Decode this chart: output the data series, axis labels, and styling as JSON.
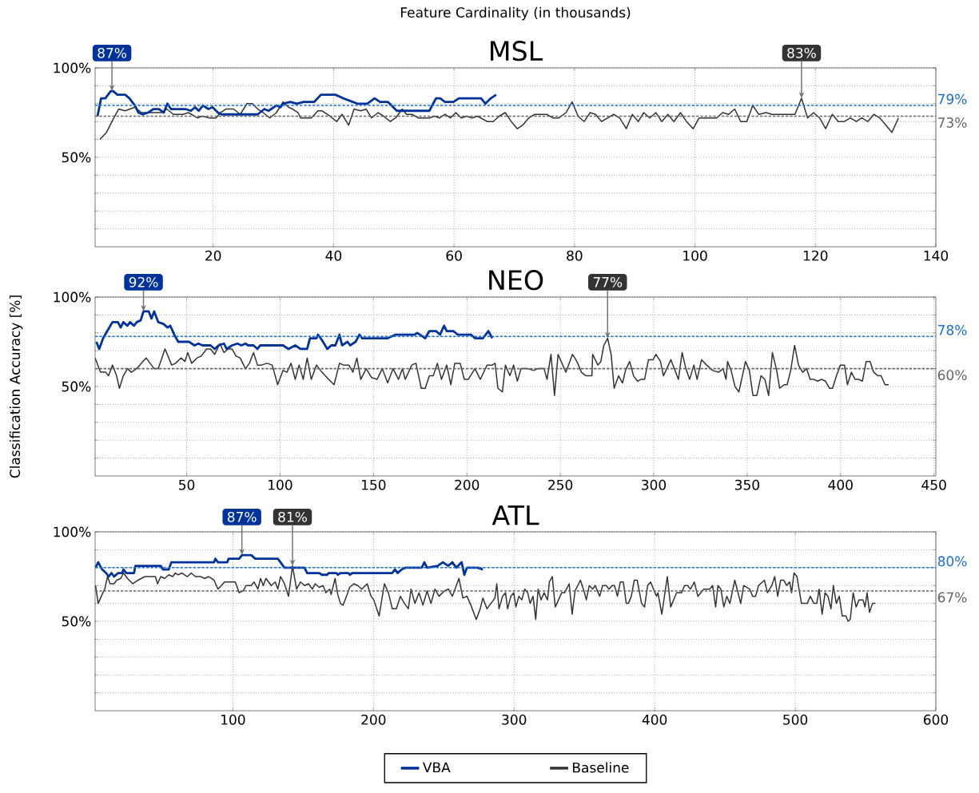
{
  "chart_data": [
    {
      "type": "line",
      "title": "MSL",
      "xlabel": "Feature Cardinality (in thousands)",
      "xlim": [
        0.4,
        140
      ],
      "xticks": [
        20,
        40,
        60,
        80,
        100,
        120,
        140
      ],
      "ylim": [
        0,
        100
      ],
      "yticks": [
        {
          "value": 10,
          "label": null
        },
        {
          "value": 20,
          "label": null
        },
        {
          "value": 30,
          "label": null
        },
        {
          "value": 40,
          "label": null
        },
        {
          "value": 50,
          "label": "50%"
        },
        {
          "value": 60,
          "label": null
        },
        {
          "value": 70,
          "label": null
        },
        {
          "value": 80,
          "label": null
        },
        {
          "value": 90,
          "label": null
        },
        {
          "value": 100,
          "label": "100%"
        }
      ],
      "grid": true,
      "series": [
        {
          "color": "#003399",
          "x": [
            0.8,
            1.4,
            2.1,
            3.0,
            3.4,
            4.1,
            5.4,
            6.1,
            7.0,
            7.6,
            8.3,
            9.2,
            10.1,
            11.0,
            11.8,
            12.4,
            13.0,
            15.4,
            16.3,
            17.0,
            17.6,
            18.3,
            19.2,
            19.9,
            20.8,
            21.4,
            27.4,
            28.5,
            29.2,
            30.5,
            31.2,
            31.6,
            32.8,
            33.9,
            35.0,
            36.8,
            37.9,
            40.3,
            41.6,
            43.2,
            43.9,
            45.6,
            46.8,
            47.7,
            49.0,
            50.5,
            55.9,
            57.0,
            57.7,
            58.5,
            59.9,
            60.8,
            64.5,
            65.2,
            66.1,
            67.0
          ],
          "values": [
            73,
            83,
            83,
            87,
            87,
            85,
            85,
            83,
            79,
            75,
            74,
            75,
            77,
            77,
            75,
            80,
            77,
            77,
            76,
            78,
            76,
            79,
            77,
            78,
            75,
            74,
            74,
            77,
            76,
            79,
            78,
            80,
            81,
            80,
            81,
            81,
            85,
            85,
            83,
            81,
            80,
            80,
            83,
            81,
            81,
            76,
            76,
            83,
            83,
            81,
            81,
            83,
            83,
            80,
            83,
            85
          ]
        },
        {
          "color": "#333333",
          "x": [
            1.2,
            2.3,
            3.2,
            4.3,
            5.4,
            7.0,
            8.1,
            8.8,
            11.4,
            12.3,
            13.4,
            15.0,
            15.9,
            17.4,
            18.1,
            19.4,
            20.5,
            21.2,
            22.1,
            23.4,
            24.5,
            25.6,
            26.5,
            27.4,
            28.3,
            29.4,
            30.5,
            31.6,
            32.5,
            33.2,
            34.1,
            34.5,
            36.3,
            37.4,
            38.1,
            39.4,
            40.5,
            41.4,
            42.5,
            43.4,
            44.5,
            45.4,
            46.3,
            47.4,
            48.3,
            49.4,
            50.3,
            51.4,
            52.1,
            53.0,
            54.1,
            55.9,
            56.8,
            57.6,
            58.5,
            59.4,
            60.3,
            61.2,
            62.1,
            63.0,
            63.9,
            65.5,
            66.5,
            67.5,
            68.5,
            69.5,
            70.5,
            71.4,
            72.4,
            73.4,
            75.4,
            76.4,
            77.4,
            78.6,
            79.6,
            80.6,
            81.6,
            82.6,
            83.5,
            84.5,
            86.5,
            87.5,
            88.6,
            89.6,
            90.6,
            91.5,
            92.5,
            93.5,
            94.5,
            95.5,
            96.5,
            97.6,
            98.6,
            99.7,
            100.7,
            103.6,
            104.6,
            105.6,
            106.6,
            107.6,
            108.6,
            109.6,
            110.6,
            111.8,
            112.8,
            116.6,
            117.7,
            118.7,
            119.7,
            120.7,
            121.7,
            122.8,
            123.8,
            124.8,
            125.8,
            126.8,
            127.7,
            128.7,
            129.7,
            130.7,
            132.7,
            133.8
          ],
          "values": [
            60,
            64,
            70,
            77,
            76,
            78,
            75,
            75,
            75,
            77,
            74,
            74,
            75,
            72,
            73,
            72,
            72,
            75,
            77,
            77,
            74,
            80,
            80,
            77,
            75,
            72,
            75,
            81,
            78,
            77,
            75,
            72,
            72,
            76,
            76,
            73,
            70,
            74,
            68,
            77,
            76,
            77,
            72,
            75,
            73,
            70,
            72,
            77,
            74,
            74,
            72,
            72,
            73,
            72,
            74,
            72,
            75,
            72,
            73,
            72,
            73,
            70,
            70,
            73,
            75,
            70,
            66,
            68,
            72,
            74,
            74,
            72,
            72,
            75,
            81,
            73,
            70,
            75,
            74,
            70,
            74,
            72,
            66,
            74,
            70,
            75,
            72,
            75,
            70,
            74,
            70,
            75,
            70,
            66,
            72,
            72,
            75,
            74,
            77,
            70,
            70,
            79,
            74,
            75,
            74,
            74,
            83,
            72,
            75,
            72,
            66,
            74,
            70,
            70,
            72,
            70,
            72,
            70,
            74,
            72,
            64,
            72
          ]
        }
      ],
      "ref_lines": [
        {
          "axis": "y",
          "value": 79,
          "label": "79%",
          "color": "#1f6fd1",
          "line_style": "dashed"
        },
        {
          "axis": "y",
          "value": 73,
          "label": "73%",
          "color": "#666666",
          "line_style": "dashed"
        }
      ],
      "annotations": [
        {
          "text": "87%",
          "x": 3.2,
          "y": 87
        },
        {
          "text": "83%",
          "x": 117.7,
          "y": 83
        }
      ]
    },
    {
      "type": "line",
      "title": "NEO",
      "ylabel": "Classification Accuracy [%]",
      "xlim": [
        1,
        451
      ],
      "xticks": [
        50,
        100,
        150,
        200,
        250,
        300,
        350,
        400,
        450
      ],
      "ylim": [
        0,
        100
      ],
      "yticks": [
        {
          "value": 10,
          "label": null
        },
        {
          "value": 20,
          "label": null
        },
        {
          "value": 30,
          "label": null
        },
        {
          "value": 40,
          "label": null
        },
        {
          "value": 50,
          "label": "50%"
        },
        {
          "value": 60,
          "label": null
        },
        {
          "value": 70,
          "label": null
        },
        {
          "value": 80,
          "label": null
        },
        {
          "value": 90,
          "label": null
        },
        {
          "value": 100,
          "label": "100%"
        }
      ],
      "grid": true,
      "series": [
        {
          "color": "#003399",
          "x": [
            1.7,
            3.2,
            5.3,
            7.5,
            10.3,
            13.2,
            14.7,
            16.1,
            18.3,
            19.7,
            21.8,
            23.3,
            25.4,
            26.9,
            29.7,
            31.2,
            32.6,
            34.8,
            37.6,
            39.8,
            41.2,
            43.4,
            45.5,
            51.3,
            54.2,
            56.3,
            58.5,
            62.8,
            65.0,
            67.1,
            70.0,
            71.4,
            74.3,
            77.2,
            79.3,
            81.5,
            82.9,
            85.8,
            87.9,
            89.4,
            91.5,
            101.6,
            104.5,
            108.1,
            110.9,
            114.5,
            116.0,
            119.5,
            120.3,
            122.4,
            125.3,
            127.4,
            129.6,
            131.8,
            133.2,
            136.1,
            137.5,
            140.4,
            142.5,
            144.0,
            149.0,
            151.9,
            154.7,
            157.6,
            161.9,
            172.0,
            173.4,
            177.7,
            179.9,
            183.5,
            185.6,
            187.8,
            189.2,
            192.8,
            195.0,
            202.2,
            204.3,
            208.6,
            211.5,
            213.6
          ],
          "values": [
            75,
            71,
            77,
            81,
            86,
            86,
            83,
            86,
            84,
            86,
            84,
            86,
            87,
            92,
            92,
            88,
            92,
            86,
            85,
            83,
            84,
            79,
            75,
            75,
            73,
            74,
            73,
            73,
            71,
            73,
            74,
            71,
            73,
            74,
            73,
            74,
            73,
            73,
            71,
            73,
            73,
            73,
            71,
            73,
            71,
            71,
            77,
            77,
            79,
            76,
            71,
            73,
            73,
            79,
            73,
            75,
            73,
            75,
            79,
            77,
            77,
            77,
            77,
            77,
            79,
            79,
            80,
            77,
            81,
            81,
            79,
            84,
            81,
            81,
            79,
            79,
            77,
            77,
            81,
            77
          ]
        },
        {
          "color": "#333333",
          "x": [
            1,
            3.9,
            6.7,
            8.2,
            10.3,
            12.5,
            14,
            16.1,
            18.3,
            20.4,
            23.3,
            28.3,
            32.6,
            34.8,
            38.4,
            42,
            44.1,
            47,
            49.1,
            50.6,
            52.7,
            55.6,
            57.8,
            60.6,
            62.8,
            65,
            67.8,
            70,
            72.1,
            74.3,
            76.4,
            78.6,
            81.5,
            83.6,
            85.8,
            87.9,
            90.1,
            93,
            95.8,
            98.7,
            101.6,
            103.7,
            105.9,
            108.1,
            110.2,
            112.4,
            114.5,
            116.7,
            119.5,
            122.4,
            126,
            128.9,
            131.8,
            133.9,
            136.8,
            139,
            141.1,
            143.2,
            146.1,
            149,
            151.9,
            154.7,
            157.6,
            160.5,
            163.4,
            165.5,
            167,
            170.5,
            172.7,
            175.6,
            177.7,
            179.9,
            182,
            184.2,
            186.4,
            189.2,
            191.4,
            193.5,
            196.4,
            198.6,
            200.7,
            204.3,
            207.2,
            210.8,
            213.6,
            215.1,
            216.6,
            219,
            220.6,
            223,
            225,
            227,
            229,
            232.5,
            235.7,
            238.1,
            241.3,
            242.9,
            245,
            246.9,
            248.8,
            253,
            256.5,
            258.9,
            261.3,
            263.7,
            266.9,
            267.3,
            270.1,
            271.7,
            273.3,
            275.3,
            277.2,
            278.8,
            281.2,
            283.3,
            284.9,
            287.1,
            289.2,
            291.3,
            293.2,
            295.1,
            297.2,
            299.6,
            301.2,
            303.6,
            305.2,
            309.2,
            313.2,
            315.2,
            317.2,
            319.2,
            321.5,
            323.2,
            325.6,
            328.3,
            331.5,
            334.7,
            337.1,
            338.7,
            339.5,
            341.4,
            343.5,
            345.6,
            349.1,
            351.2,
            353.1,
            355.2,
            357.4,
            359.5,
            361.5,
            363.5,
            365.8,
            367.4,
            369.8,
            371.4,
            373.3,
            375.4,
            377.5,
            379.7,
            381.8,
            383.7,
            385.8,
            387.7,
            389.8,
            391.9,
            394.1,
            395.7,
            397.8,
            399.9,
            402.1,
            403.7,
            405.8,
            407.8,
            409.8,
            411.7,
            413.7,
            415.8,
            417.7,
            420.1,
            421.7,
            423.8,
            425.7
          ],
          "values": [
            66,
            58,
            58,
            56,
            62,
            56,
            49,
            56,
            60,
            58,
            60,
            66,
            60,
            60,
            71,
            62,
            63,
            66,
            64,
            69,
            63,
            66,
            67,
            71,
            71,
            68,
            74,
            69,
            71,
            71,
            67,
            66,
            60,
            63,
            69,
            62,
            62,
            63,
            62,
            51,
            59,
            58,
            63,
            54,
            62,
            54,
            66,
            54,
            62,
            58,
            54,
            51,
            63,
            62,
            62,
            58,
            66,
            54,
            60,
            55,
            54,
            60,
            52,
            60,
            54,
            60,
            54,
            62,
            63,
            49,
            49,
            56,
            56,
            63,
            54,
            62,
            51,
            63,
            63,
            54,
            54,
            60,
            54,
            62,
            62,
            63,
            49,
            47,
            62,
            56,
            62,
            53,
            60,
            60,
            59,
            60,
            60,
            54,
            68,
            45,
            68,
            58,
            68,
            64,
            58,
            56,
            56,
            68,
            62,
            64,
            73,
            77,
            68,
            49,
            56,
            52,
            59,
            64,
            56,
            53,
            54,
            54,
            65,
            65,
            68,
            64,
            56,
            65,
            54,
            69,
            60,
            54,
            62,
            54,
            65,
            62,
            59,
            58,
            60,
            54,
            64,
            59,
            50,
            47,
            64,
            59,
            45,
            45,
            56,
            54,
            45,
            69,
            59,
            49,
            51,
            51,
            59,
            73,
            62,
            58,
            60,
            54,
            54,
            53,
            54,
            53,
            49,
            49,
            56,
            62,
            62,
            51,
            58,
            54,
            54,
            53,
            64,
            64,
            58,
            56,
            56,
            51,
            51
          ]
        }
      ],
      "ref_lines": [
        {
          "axis": "y",
          "value": 78,
          "label": "78%",
          "color": "#1f6fd1",
          "line_style": "dashed"
        },
        {
          "axis": "y",
          "value": 60,
          "label": "60%",
          "color": "#666666",
          "line_style": "dashed"
        }
      ],
      "annotations": [
        {
          "text": "92%",
          "x": 26.9,
          "y": 92
        },
        {
          "text": "77%",
          "x": 275.3,
          "y": 77
        }
      ]
    },
    {
      "type": "line",
      "title": "ATL",
      "xlim": [
        2,
        600
      ],
      "xticks": [
        100,
        200,
        300,
        400,
        500,
        600
      ],
      "ylim": [
        0,
        100
      ],
      "yticks": [
        {
          "value": 10,
          "label": null
        },
        {
          "value": 20,
          "label": null
        },
        {
          "value": 30,
          "label": null
        },
        {
          "value": 40,
          "label": null
        },
        {
          "value": 50,
          "label": "50%"
        },
        {
          "value": 60,
          "label": null
        },
        {
          "value": 70,
          "label": null
        },
        {
          "value": 80,
          "label": null
        },
        {
          "value": 90,
          "label": null
        },
        {
          "value": 100,
          "label": "100%"
        }
      ],
      "grid": true,
      "legend": "bottom",
      "series": [
        {
          "name": "VBA",
          "color": "#003399",
          "x": [
            2.3,
            4.2,
            7,
            9.8,
            11.7,
            13.6,
            15.5,
            18.4,
            21.2,
            22.2,
            24.1,
            29.7,
            30.7,
            48.7,
            50.2,
            54.4,
            56.2,
            86.6,
            87.5,
            89.4,
            96,
            97,
            104.5,
            106.4,
            113.1,
            115.9,
            132,
            136.7,
            151,
            152.8,
            161.4,
            163.3,
            167,
            168,
            173.7,
            174.6,
            176.5,
            182.2,
            183.1,
            185,
            213.4,
            215.3,
            217.2,
            220.1,
            222.9,
            234.3,
            236.2,
            238.1,
            245.6,
            249.4,
            253.2,
            256.1,
            258.9,
            262.7,
            264.6,
            266.5,
            270.3,
            274.1,
            277.8
          ],
          "values": [
            80,
            83,
            79,
            77,
            75,
            77,
            75,
            77,
            77,
            79,
            77,
            77,
            81,
            81,
            79,
            79,
            83,
            83,
            85,
            83,
            83,
            85,
            85,
            87,
            87,
            85,
            85,
            80,
            80,
            77,
            77,
            76,
            76,
            77,
            77,
            76,
            77,
            77,
            76,
            77,
            77,
            79,
            77,
            79,
            80,
            80,
            83,
            80,
            81,
            83,
            81,
            83,
            80,
            83,
            76,
            80,
            80,
            80,
            79
          ]
        },
        {
          "name": "Baseline",
          "color": "#333333",
          "x": [
            2.3,
            4.2,
            7,
            8.9,
            10.8,
            12.7,
            15.5,
            17.4,
            20.3,
            22.2,
            25,
            28.8,
            32.6,
            37.3,
            44.9,
            46.4,
            48.7,
            51.5,
            54.4,
            57.2,
            59.1,
            61,
            63.8,
            67.6,
            70.4,
            73.3,
            77.1,
            79.9,
            82.8,
            86.6,
            89.4,
            94.1,
            101.7,
            104.5,
            107.4,
            109.3,
            113.1,
            115,
            117.8,
            119.7,
            121.6,
            123.5,
            127.3,
            130.1,
            132,
            133.9,
            136.7,
            139.6,
            142.4,
            145.3,
            148.1,
            151,
            153.8,
            156.6,
            158.5,
            161.4,
            164.2,
            166.1,
            168.9,
            169.9,
            172.7,
            174.6,
            176.5,
            178.4,
            180.3,
            183.1,
            186,
            188.8,
            191.7,
            195.5,
            198.3,
            200.2,
            204,
            207.8,
            210.6,
            213.4,
            216.3,
            219.1,
            222,
            224.8,
            226.7,
            229.5,
            232.4,
            235.2,
            238.1,
            240.9,
            243.7,
            246.6,
            250.4,
            253.2,
            256.1,
            258,
            260.8,
            263.6,
            266.5,
            269.3,
            273.1,
            275.9,
            277.8,
            280.7,
            283.5,
            286.4,
            287.7,
            289.3,
            291.8,
            293.9,
            295.4,
            297.7,
            299.8,
            301.3,
            303.4,
            305.5,
            307.6,
            309.7,
            311.4,
            313.5,
            315.4,
            317.1,
            319.2,
            321.3,
            323.8,
            325.1,
            327.2,
            329.3,
            333.9,
            336,
            339.2,
            341.3,
            343.4,
            347.2,
            349.7,
            351.4,
            353.5,
            356,
            357.7,
            360.9,
            363,
            365.5,
            367.6,
            369.7,
            371.4,
            373.5,
            375.6,
            377.7,
            379.8,
            381.3,
            383.4,
            385.5,
            387.6,
            390.7,
            392.8,
            395,
            397.1,
            399.2,
            401.3,
            402.3,
            405.1,
            409,
            411.4,
            415.6,
            419.1,
            421.3,
            423.4,
            425.5,
            428.2,
            430.7,
            434.9,
            439.1,
            441.2,
            443.4,
            445,
            447.1,
            449.2,
            451.3,
            453.5,
            457,
            461.2,
            463.3,
            467.6,
            469.7,
            471.8,
            473.9,
            478.1,
            480.2,
            483.3,
            485.4,
            487.5,
            489.6,
            491.7,
            493.9,
            496,
            497.4,
            499.1,
            501.2,
            504.4,
            508.6,
            510.7,
            513.2,
            515.3,
            517,
            519.1,
            521.2,
            523.3,
            525.4,
            527.1,
            529.2,
            531.3,
            533.4,
            536,
            537.6,
            539.1,
            541.2,
            543.3,
            545.4,
            548.2,
            549.6,
            551.1,
            552.8,
            554.9,
            557
          ],
          "values": [
            70,
            60,
            65,
            68,
            75,
            71,
            71,
            73,
            74,
            77,
            74,
            71,
            73,
            75,
            75,
            71,
            75,
            74,
            76,
            75,
            77,
            76,
            77,
            75,
            77,
            75,
            75,
            74,
            75,
            73,
            68,
            72,
            72,
            66,
            67,
            70,
            70,
            72,
            68,
            74,
            70,
            74,
            70,
            72,
            68,
            75,
            71,
            64,
            81,
            68,
            72,
            70,
            71,
            68,
            71,
            69,
            70,
            66,
            68,
            65,
            74,
            65,
            60,
            59,
            63,
            69,
            71,
            70,
            68,
            71,
            64,
            62,
            53,
            71,
            66,
            57,
            57,
            64,
            60,
            57,
            68,
            60,
            66,
            59,
            67,
            60,
            68,
            64,
            67,
            68,
            64,
            68,
            74,
            63,
            64,
            59,
            51,
            57,
            63,
            57,
            60,
            63,
            71,
            57,
            64,
            66,
            57,
            64,
            66,
            58,
            64,
            62,
            68,
            66,
            60,
            64,
            51,
            68,
            62,
            66,
            62,
            72,
            75,
            58,
            66,
            66,
            71,
            54,
            67,
            73,
            67,
            62,
            70,
            68,
            70,
            64,
            70,
            70,
            68,
            70,
            70,
            64,
            72,
            72,
            60,
            60,
            64,
            73,
            73,
            60,
            58,
            70,
            72,
            68,
            64,
            66,
            54,
            75,
            58,
            66,
            66,
            70,
            70,
            68,
            72,
            64,
            68,
            68,
            70,
            58,
            70,
            68,
            58,
            64,
            60,
            73,
            60,
            70,
            68,
            64,
            64,
            70,
            73,
            66,
            70,
            75,
            64,
            73,
            73,
            70,
            72,
            66,
            77,
            75,
            60,
            60,
            64,
            60,
            60,
            68,
            54,
            66,
            64,
            57,
            70,
            60,
            64,
            53,
            53,
            50,
            51,
            66,
            58,
            62,
            62,
            58,
            66,
            55,
            60,
            60
          ]
        }
      ],
      "ref_lines": [
        {
          "axis": "y",
          "value": 80,
          "label": "80%",
          "color": "#1f6fd1",
          "line_style": "dashed"
        },
        {
          "axis": "y",
          "value": 67,
          "label": "67%",
          "color": "#666666",
          "line_style": "dashed"
        }
      ],
      "annotations": [
        {
          "text": "87%",
          "x": 106.4,
          "y": 87
        },
        {
          "text": "81%",
          "x": 142.4,
          "y": 81
        }
      ]
    }
  ]
}
